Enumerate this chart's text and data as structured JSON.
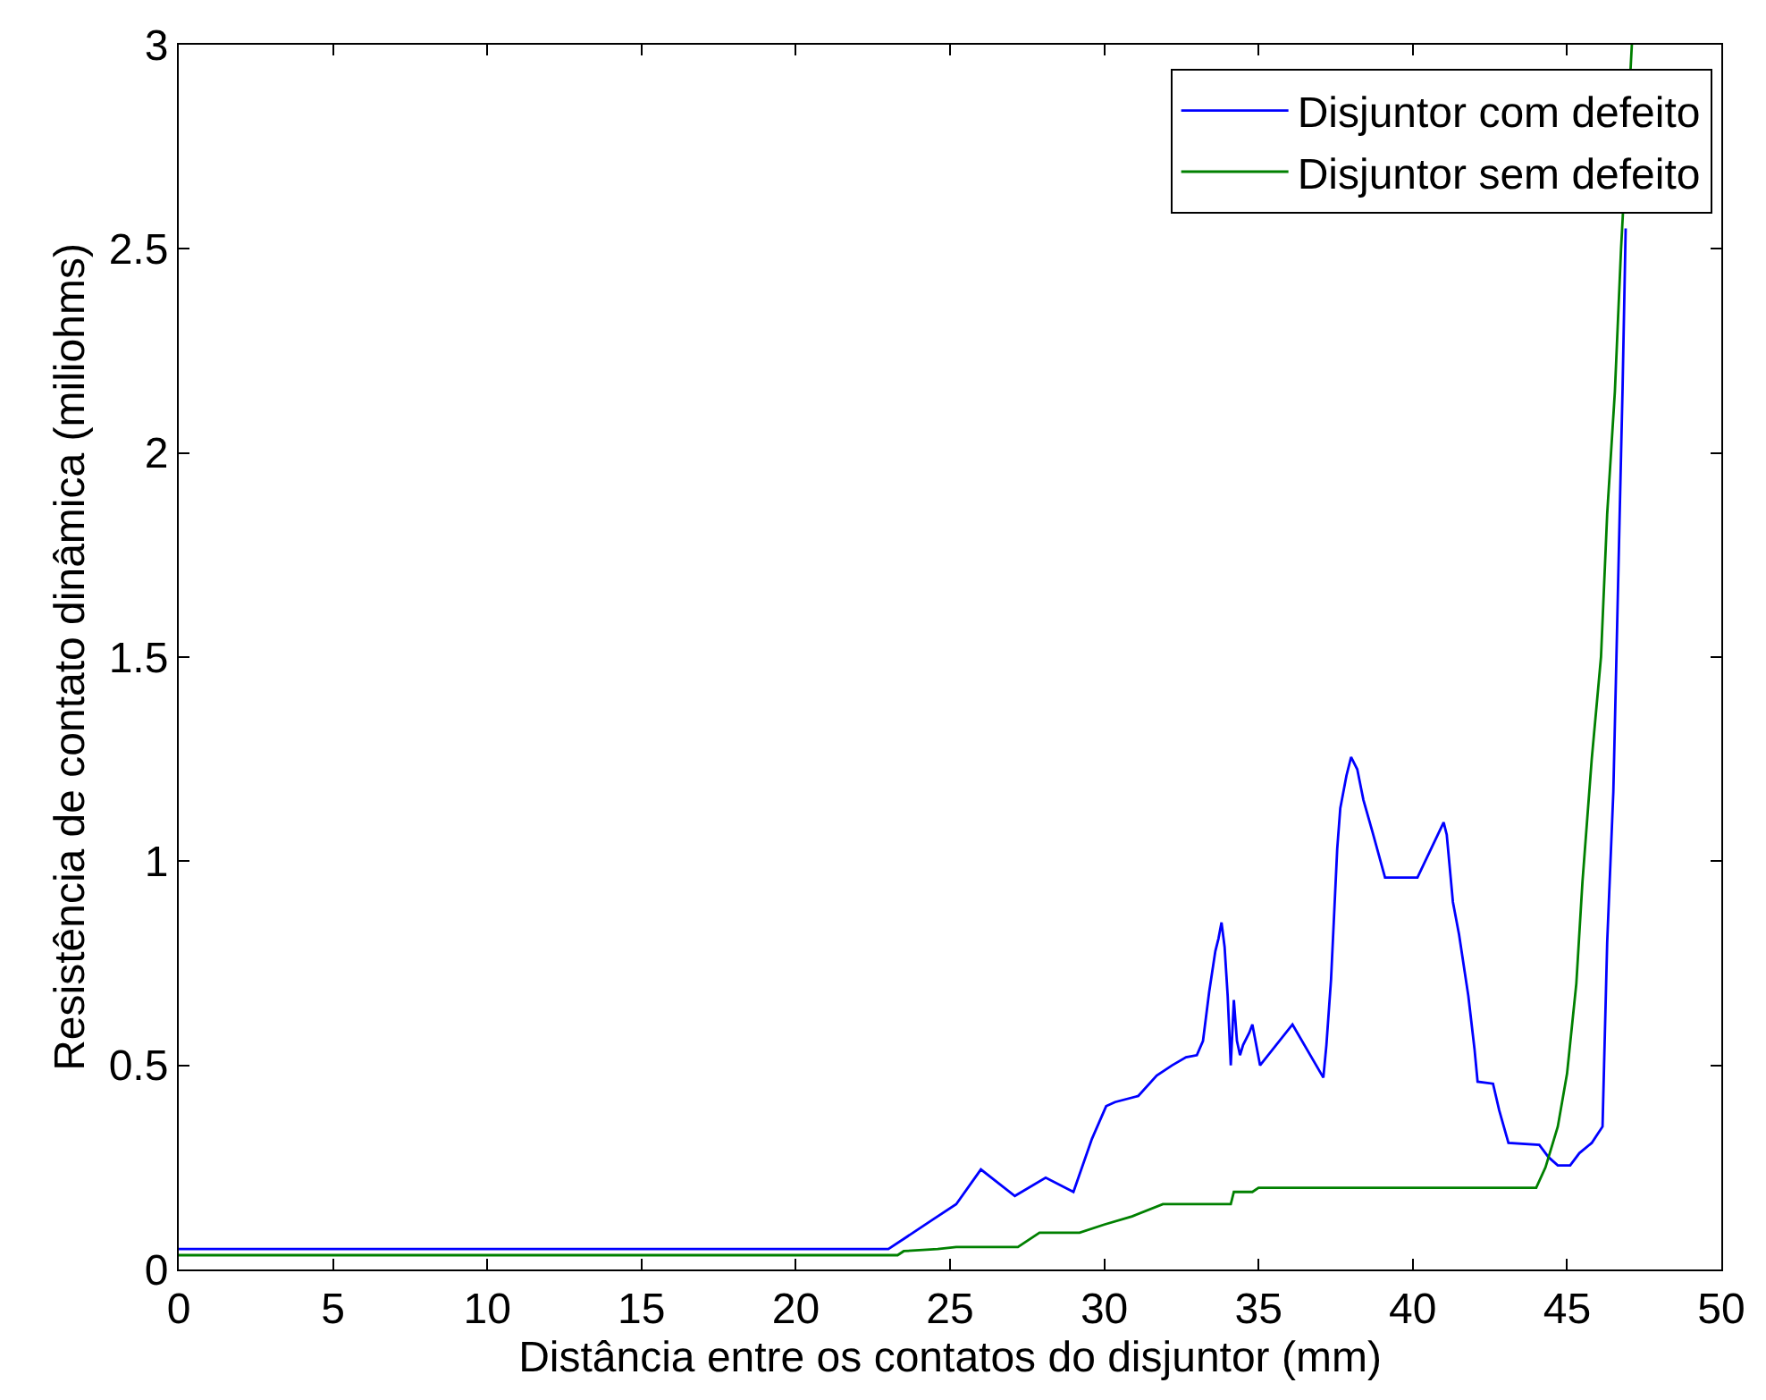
{
  "chart_data": {
    "type": "line",
    "xlabel": "Distância entre os contatos do disjuntor (mm)",
    "ylabel": "Resistência de contato dinâmica (miliohms)",
    "xlim": [
      0,
      50
    ],
    "ylim": [
      0,
      3
    ],
    "xticks": [
      0,
      5,
      10,
      15,
      20,
      25,
      30,
      35,
      40,
      45,
      50
    ],
    "yticks": [
      0,
      0.5,
      1,
      1.5,
      2,
      2.5,
      3
    ],
    "legend": "top right",
    "series": [
      {
        "name": "Disjuntor com defeito",
        "color": "#0000ff",
        "x": [
          0,
          23,
          23.6,
          24.4,
          25.2,
          26.0,
          27.1,
          28.1,
          29.0,
          29.6,
          30.06,
          30.35,
          31.1,
          31.7,
          32.2,
          32.65,
          33.0,
          33.2,
          33.4,
          33.6,
          33.7,
          33.8,
          33.9,
          34.0,
          34.1,
          34.2,
          34.3,
          34.4,
          34.5,
          34.7,
          34.8,
          34.9,
          35.05,
          36.1,
          37.1,
          37.2,
          37.35,
          37.45,
          37.55,
          37.65,
          37.85,
          38.0,
          38.2,
          38.4,
          38.7,
          39.1,
          40.15,
          41.0,
          41.1,
          41.3,
          41.5,
          41.8,
          42.0,
          42.1,
          42.6,
          42.8,
          43.1,
          44.1,
          44.4,
          44.7,
          45.1,
          45.4,
          45.8,
          46.15,
          46.2,
          46.3,
          46.5,
          46.6,
          46.7,
          46.8,
          46.9
        ],
        "values": [
          0.05,
          0.05,
          0.08,
          0.12,
          0.16,
          0.245,
          0.18,
          0.225,
          0.19,
          0.32,
          0.4,
          0.41,
          0.425,
          0.475,
          0.5,
          0.52,
          0.525,
          0.56,
          0.68,
          0.78,
          0.81,
          0.85,
          0.79,
          0.67,
          0.5,
          0.66,
          0.56,
          0.525,
          0.55,
          0.58,
          0.6,
          0.56,
          0.5,
          0.6,
          0.47,
          0.55,
          0.71,
          0.87,
          1.03,
          1.13,
          1.21,
          1.255,
          1.225,
          1.15,
          1.07,
          0.96,
          0.96,
          1.095,
          1.065,
          0.9,
          0.82,
          0.67,
          0.54,
          0.46,
          0.455,
          0.39,
          0.31,
          0.305,
          0.275,
          0.255,
          0.255,
          0.285,
          0.31,
          0.35,
          0.5,
          0.8,
          1.17,
          1.5,
          1.83,
          2.16,
          2.55
        ]
      },
      {
        "name": "Disjuntor sem defeito",
        "color": "#008000",
        "x": [
          0,
          23.3,
          23.5,
          24.6,
          25.2,
          27.2,
          27.9,
          29.2,
          30.0,
          30.9,
          31.9,
          34.1,
          34.2,
          34.8,
          35.0,
          44.0,
          44.3,
          44.7,
          45.0,
          45.3,
          45.5,
          45.8,
          46.1,
          46.3,
          46.55,
          46.75,
          47.1
        ],
        "values": [
          0.035,
          0.035,
          0.045,
          0.05,
          0.055,
          0.055,
          0.09,
          0.09,
          0.11,
          0.13,
          0.16,
          0.16,
          0.19,
          0.19,
          0.2,
          0.2,
          0.25,
          0.35,
          0.48,
          0.7,
          0.95,
          1.25,
          1.5,
          1.85,
          2.15,
          2.5,
          3.0
        ]
      }
    ]
  }
}
